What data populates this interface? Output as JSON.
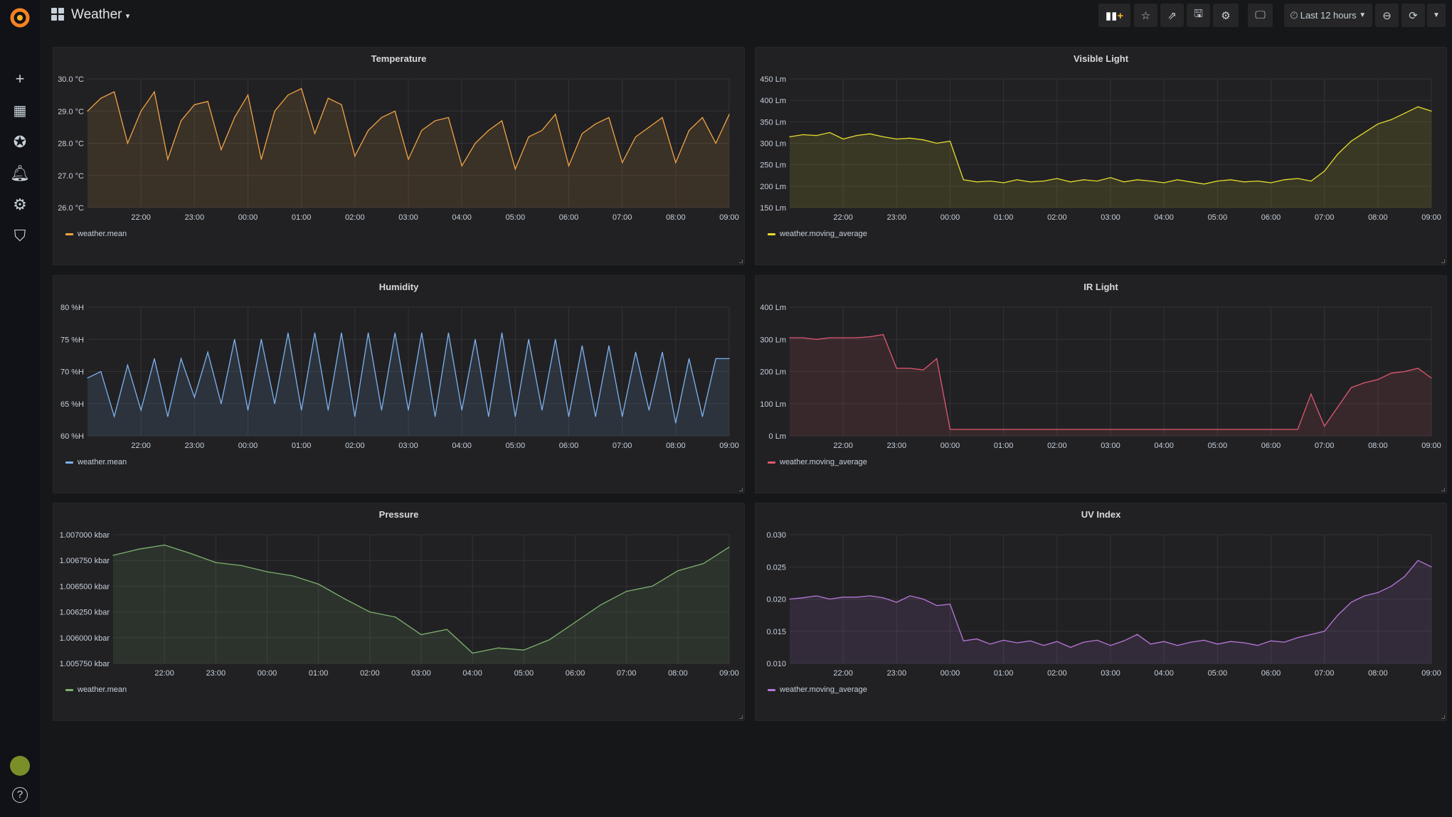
{
  "header": {
    "title": "Weather",
    "time_range": "Last 12 hours"
  },
  "toolbar": [
    "add-panel",
    "star",
    "share",
    "save",
    "settings",
    "tv-mode",
    "time-picker",
    "zoom-out",
    "refresh",
    "refresh-interval"
  ],
  "sidebar": {
    "items": [
      "create",
      "dashboards",
      "explore",
      "alerting",
      "configuration",
      "server-admin"
    ],
    "bottom": [
      "profile",
      "help"
    ]
  },
  "x_axis": {
    "start": "21:00",
    "end": "09:00",
    "step_minutes": 15,
    "ticks": [
      "22:00",
      "23:00",
      "00:00",
      "01:00",
      "02:00",
      "03:00",
      "04:00",
      "05:00",
      "06:00",
      "07:00",
      "08:00",
      "09:00"
    ]
  },
  "panels": [
    {
      "title": "Temperature",
      "legend": "weather.mean",
      "color": "#F2A444",
      "ylim": [
        26,
        30
      ],
      "yticks": [
        "30.0 °C",
        "29.0 °C",
        "28.0 °C",
        "27.0 °C",
        "26.0 °C"
      ],
      "values": [
        29.0,
        29.4,
        29.6,
        28.0,
        29.0,
        29.6,
        27.5,
        28.7,
        29.2,
        29.3,
        27.8,
        28.8,
        29.5,
        27.5,
        29.0,
        29.5,
        29.7,
        28.3,
        29.4,
        29.2,
        27.6,
        28.4,
        28.8,
        29.0,
        27.5,
        28.4,
        28.7,
        28.8,
        27.3,
        28.0,
        28.4,
        28.7,
        27.2,
        28.2,
        28.4,
        28.9,
        27.3,
        28.3,
        28.6,
        28.8,
        27.4,
        28.2,
        28.5,
        28.8,
        27.4,
        28.4,
        28.8,
        28.0,
        28.9
      ]
    },
    {
      "title": "Visible Light",
      "legend": "weather.moving_average",
      "color": "#E5DC2C",
      "ylim": [
        150,
        450
      ],
      "yticks": [
        "450 Lm",
        "400 Lm",
        "350 Lm",
        "300 Lm",
        "250 Lm",
        "200 Lm",
        "150 Lm"
      ],
      "values": [
        315,
        320,
        318,
        325,
        310,
        318,
        322,
        315,
        310,
        312,
        308,
        300,
        305,
        215,
        210,
        212,
        208,
        215,
        210,
        212,
        218,
        210,
        215,
        212,
        220,
        210,
        215,
        212,
        208,
        215,
        210,
        205,
        212,
        215,
        210,
        212,
        208,
        215,
        218,
        212,
        235,
        275,
        305,
        325,
        345,
        355,
        370,
        385,
        375
      ]
    },
    {
      "title": "Humidity",
      "legend": "weather.mean",
      "color": "#7EB2F0",
      "ylim": [
        60,
        80
      ],
      "yticks": [
        "80 %H",
        "75 %H",
        "70 %H",
        "65 %H",
        "60 %H"
      ],
      "values": [
        69,
        70,
        63,
        71,
        64,
        72,
        63,
        72,
        66,
        73,
        65,
        75,
        64,
        75,
        65,
        76,
        64,
        76,
        64,
        76,
        63,
        76,
        64,
        76,
        64,
        76,
        63,
        76,
        64,
        75,
        63,
        76,
        63,
        75,
        64,
        75,
        63,
        74,
        63,
        74,
        63,
        73,
        64,
        73,
        62,
        72,
        63,
        72,
        72
      ]
    },
    {
      "title": "IR Light",
      "legend": "weather.moving_average",
      "color": "#E0586F",
      "ylim": [
        0,
        400
      ],
      "yticks": [
        "400 Lm",
        "300 Lm",
        "200 Lm",
        "100 Lm",
        "0 Lm"
      ],
      "values": [
        305,
        305,
        300,
        305,
        305,
        305,
        308,
        315,
        210,
        210,
        205,
        240,
        20,
        20,
        20,
        20,
        20,
        20,
        20,
        20,
        20,
        20,
        20,
        20,
        20,
        20,
        20,
        20,
        20,
        20,
        20,
        20,
        20,
        20,
        20,
        20,
        20,
        20,
        20,
        130,
        30,
        90,
        150,
        165,
        175,
        195,
        200,
        210,
        180
      ]
    },
    {
      "title": "Pressure",
      "legend": "weather.mean",
      "color": "#7EB26D",
      "ylim": [
        1.00575,
        1.007
      ],
      "step_minutes": 30,
      "yticks": [
        "1.007000 kbar",
        "1.006750 kbar",
        "1.006500 kbar",
        "1.006250 kbar",
        "1.006000 kbar",
        "1.005750 kbar"
      ],
      "values": [
        1.0068,
        1.00686,
        1.0069,
        1.00682,
        1.00673,
        1.0067,
        1.00664,
        1.0066,
        1.00652,
        1.00638,
        1.00625,
        1.0062,
        1.00603,
        1.00608,
        1.00585,
        1.0059,
        1.00588,
        1.00598,
        1.00615,
        1.00632,
        1.00645,
        1.0065,
        1.00665,
        1.00672,
        1.00688
      ]
    },
    {
      "title": "UV Index",
      "legend": "weather.moving_average",
      "color": "#B877D9",
      "ylim": [
        0.01,
        0.03
      ],
      "yticks": [
        "0.030",
        "0.025",
        "0.020",
        "0.015",
        "0.010"
      ],
      "values": [
        0.02,
        0.0202,
        0.0205,
        0.02,
        0.0203,
        0.0203,
        0.0205,
        0.0202,
        0.0195,
        0.0205,
        0.02,
        0.019,
        0.0192,
        0.0135,
        0.0138,
        0.013,
        0.0136,
        0.0132,
        0.0135,
        0.0128,
        0.0134,
        0.0125,
        0.0133,
        0.0136,
        0.0128,
        0.0135,
        0.0145,
        0.013,
        0.0134,
        0.0128,
        0.0133,
        0.0136,
        0.013,
        0.0134,
        0.0132,
        0.0128,
        0.0135,
        0.0133,
        0.014,
        0.0145,
        0.015,
        0.0175,
        0.0195,
        0.0205,
        0.021,
        0.022,
        0.0235,
        0.026,
        0.025
      ]
    }
  ]
}
